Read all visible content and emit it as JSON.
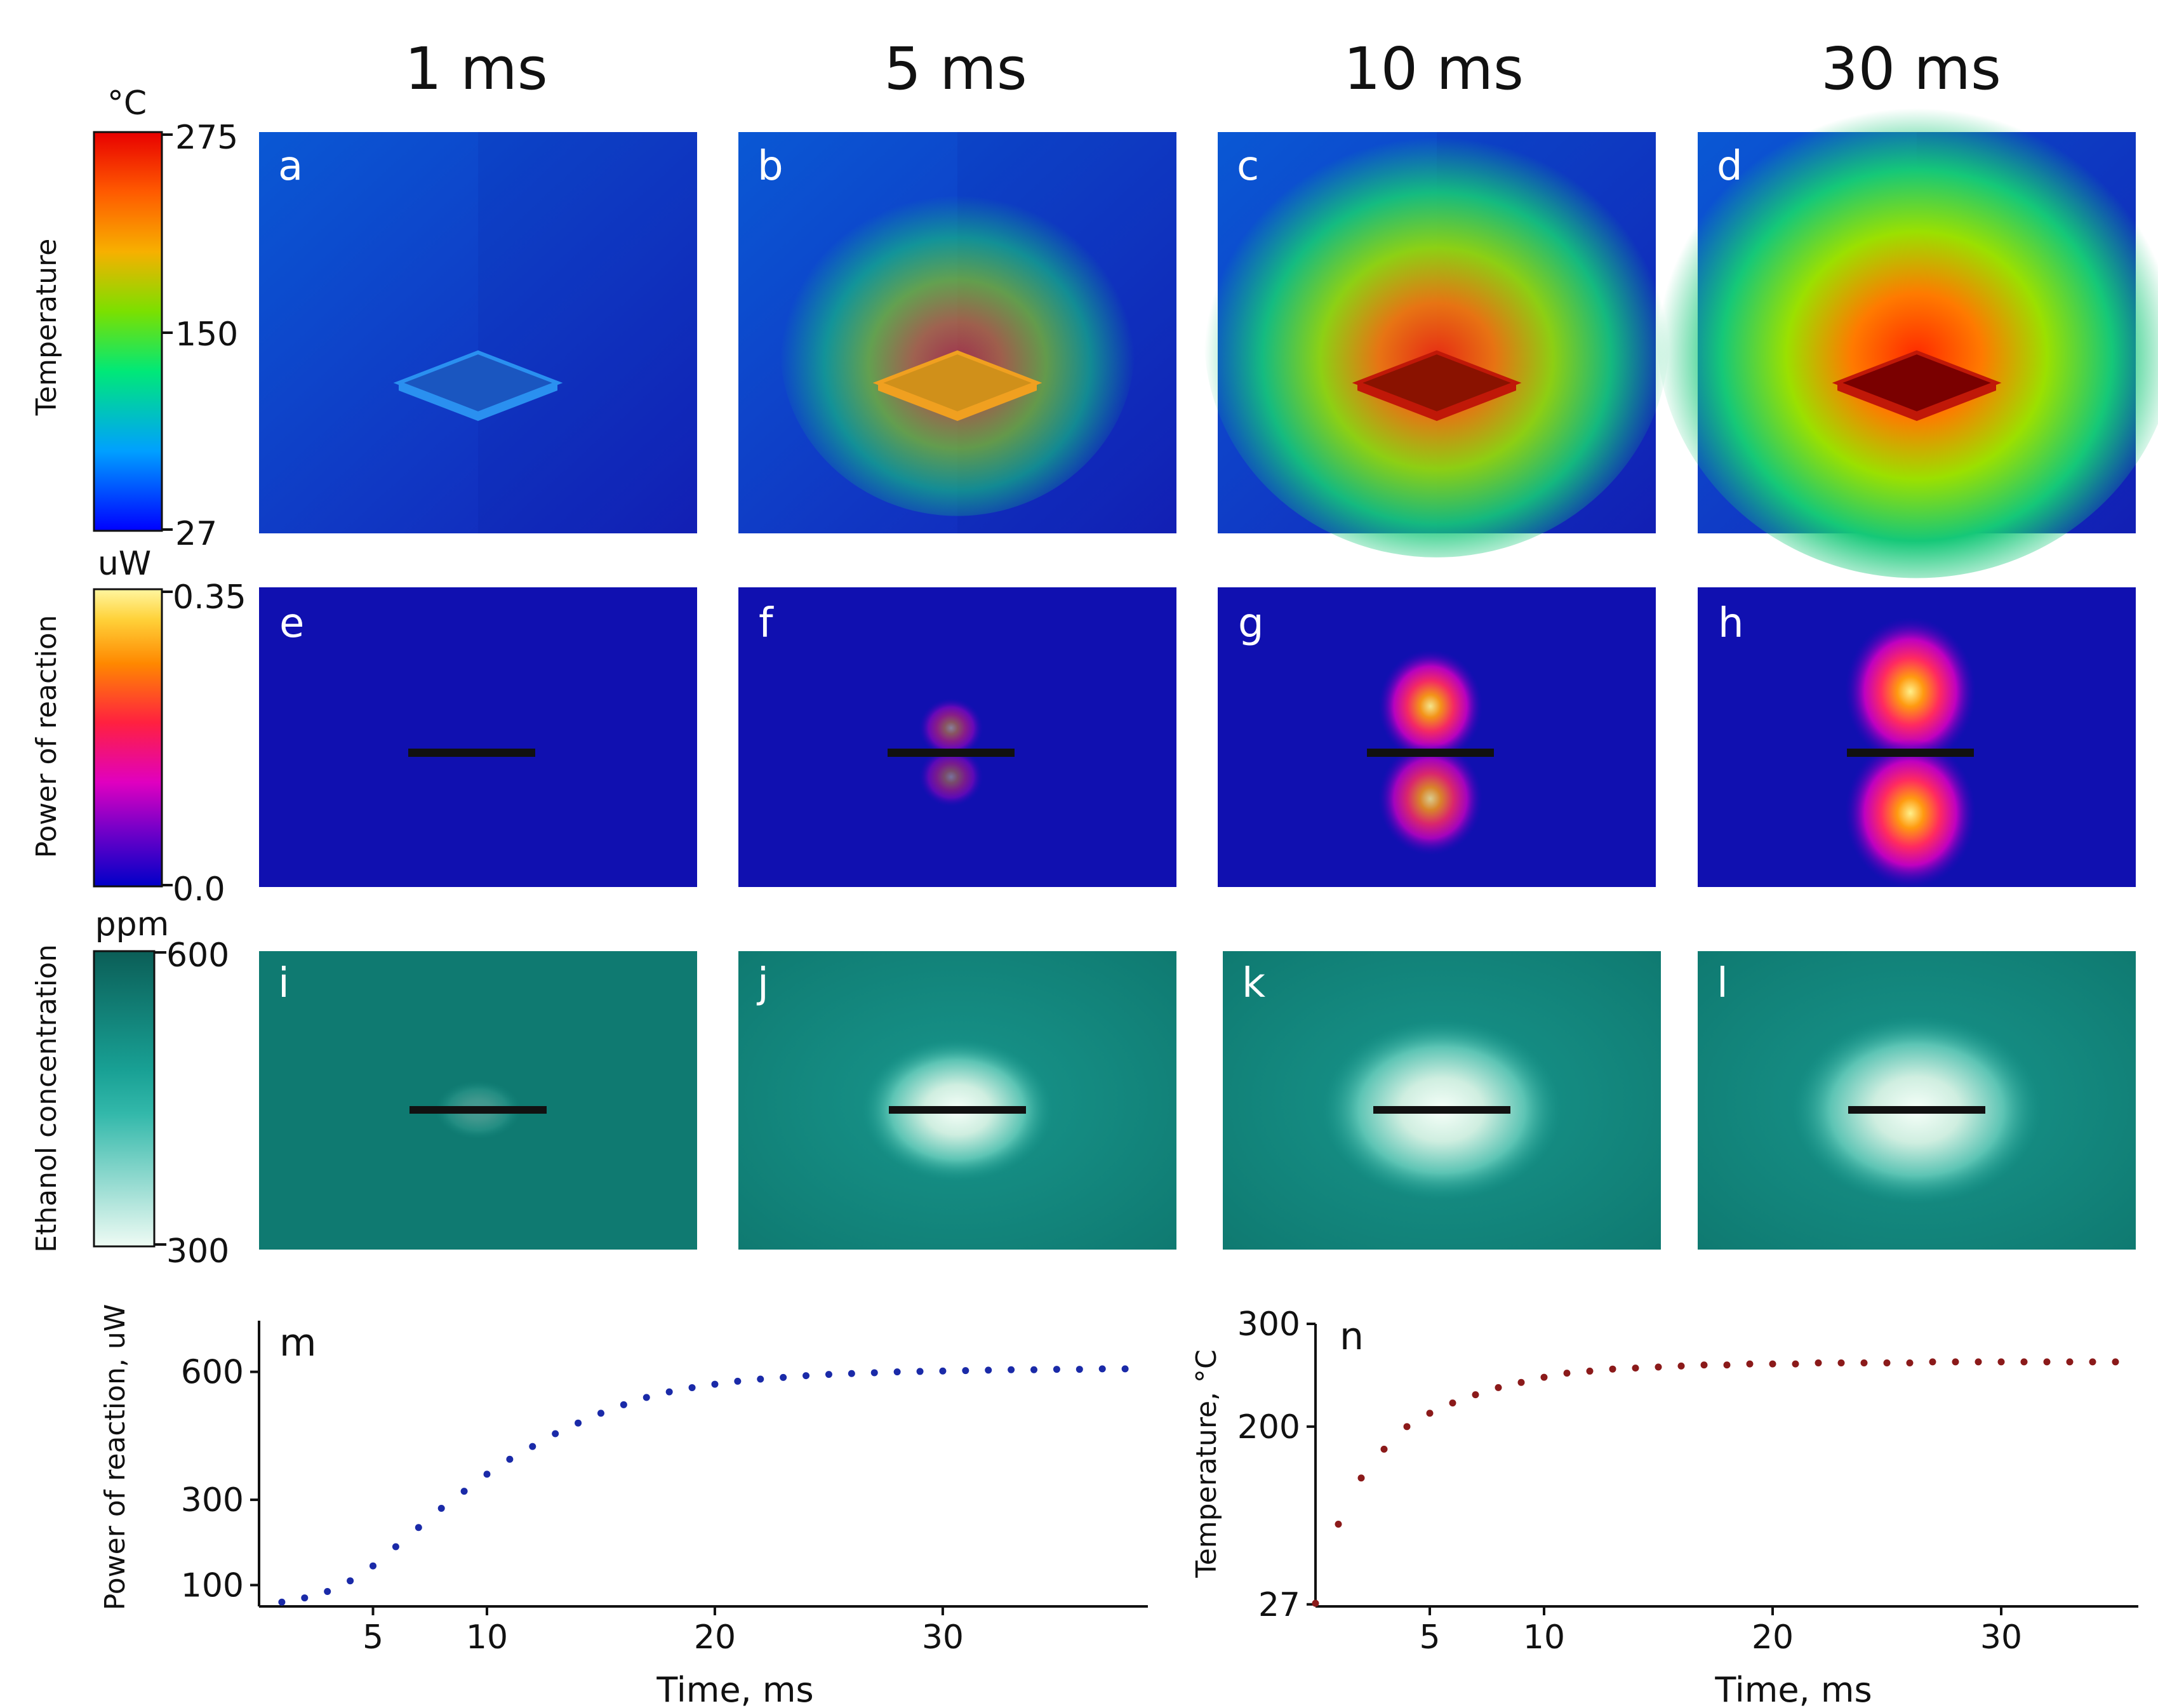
{
  "columns": [
    "1 ms",
    "5 ms",
    "10 ms",
    "30 ms"
  ],
  "rows": [
    {
      "label": "Temperature",
      "unit": "°C",
      "scale_ticks": [
        "275",
        "150",
        "27"
      ],
      "panels": [
        "a",
        "b",
        "c",
        "d"
      ],
      "heat_levels": [
        0.05,
        0.55,
        0.85,
        1.0
      ]
    },
    {
      "label": "Power of reaction",
      "unit": "uW",
      "scale_ticks": [
        "0.35",
        "0.0"
      ],
      "panels": [
        "e",
        "f",
        "g",
        "h"
      ],
      "heat_levels": [
        0.0,
        0.15,
        0.6,
        0.9
      ]
    },
    {
      "label": "Ethanol concentration",
      "unit": "ppm",
      "scale_ticks": [
        "600",
        "300"
      ],
      "panels": [
        "i",
        "j",
        "k",
        "l"
      ],
      "heat_levels": [
        0.05,
        0.6,
        0.85,
        0.9
      ]
    }
  ],
  "colors": {
    "background_blue": "#1010b0",
    "teal": "#17948a",
    "dark_teal": "#0c6e66",
    "series_m": "#1a2aa8",
    "series_n": "#8b1a1a"
  },
  "chart_data": [
    {
      "type": "scatter",
      "panel": "m",
      "xlabel": "Time, ms",
      "ylabel": "Power of reaction, uW",
      "xticks": [
        "5",
        "10",
        "20",
        "30"
      ],
      "yticks": [
        "100",
        "300",
        "600"
      ],
      "xlim": [
        0,
        39
      ],
      "ylim": [
        50,
        720
      ],
      "x": [
        1,
        2,
        3,
        4,
        5,
        6,
        7,
        8,
        9,
        10,
        11,
        12,
        13,
        14,
        15,
        16,
        17,
        18,
        19,
        20,
        21,
        22,
        23,
        24,
        25,
        26,
        27,
        28,
        29,
        30,
        31,
        32,
        33,
        34,
        35,
        36,
        37,
        38
      ],
      "y": [
        60,
        70,
        85,
        110,
        145,
        190,
        235,
        280,
        320,
        360,
        395,
        425,
        455,
        480,
        503,
        523,
        540,
        553,
        563,
        571,
        578,
        583,
        587,
        591,
        594,
        596,
        598,
        600,
        601,
        602,
        603,
        604,
        605,
        605,
        606,
        606,
        607,
        607
      ]
    },
    {
      "type": "scatter",
      "panel": "n",
      "xlabel": "Time, ms",
      "ylabel": "Temperature, °C",
      "xticks": [
        "5",
        "10",
        "20",
        "30"
      ],
      "yticks": [
        "27",
        "200",
        "300"
      ],
      "xlim": [
        0,
        36
      ],
      "ylim": [
        25,
        300
      ],
      "x": [
        0,
        1,
        2,
        3,
        4,
        5,
        6,
        7,
        8,
        9,
        10,
        11,
        12,
        13,
        14,
        15,
        16,
        17,
        18,
        19,
        20,
        21,
        22,
        23,
        24,
        25,
        26,
        27,
        28,
        29,
        30,
        31,
        32,
        33,
        34,
        35
      ],
      "y": [
        28,
        105,
        150,
        178,
        200,
        213,
        223,
        231,
        238,
        243,
        248,
        252,
        254,
        256,
        257,
        258,
        259,
        260,
        260,
        261,
        261,
        261,
        262,
        262,
        262,
        262,
        262,
        263,
        263,
        263,
        263,
        263,
        263,
        263,
        263,
        263
      ]
    }
  ]
}
